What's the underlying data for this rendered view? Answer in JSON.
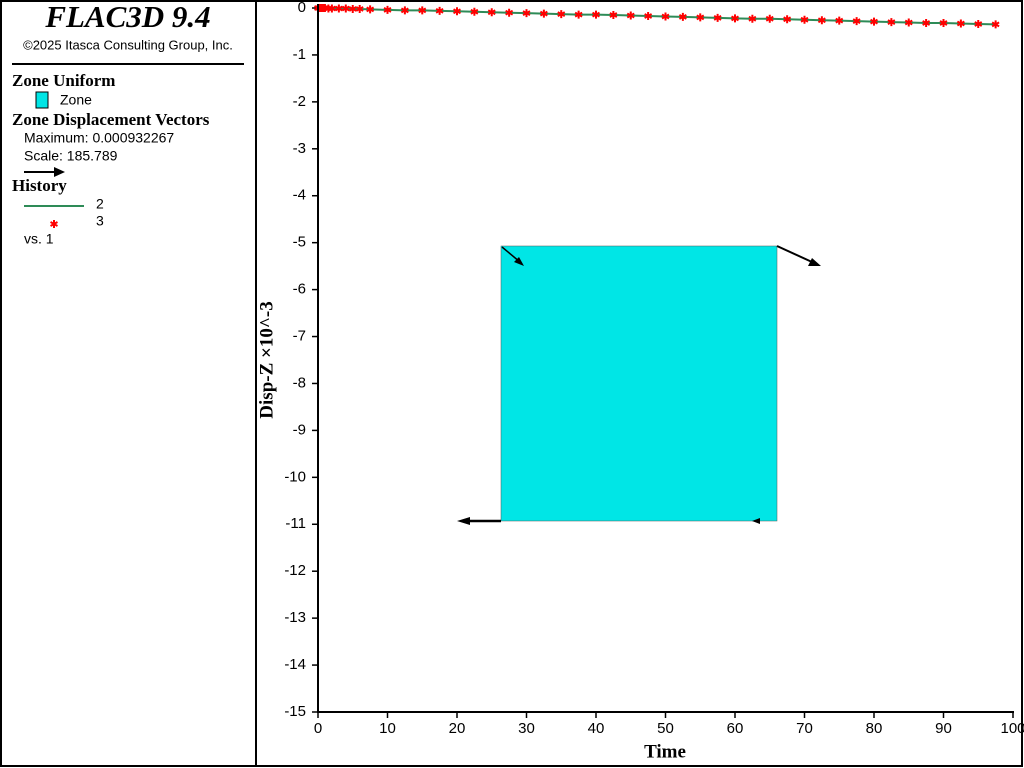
{
  "panel": {
    "title": "FLAC3D 9.4",
    "copyright": "©2025 Itasca Consulting Group, Inc.",
    "zone_heading": "Zone Uniform",
    "zone_item": "Zone",
    "vectors_heading": "Zone Displacement Vectors",
    "vectors_max": "Maximum: 0.000932267",
    "vectors_scale": "Scale: 185.789",
    "history_heading": "History",
    "history_vs": "vs. 1"
  },
  "chart_data": {
    "type": "line",
    "x_label": "Time",
    "y_label": "Disp-Z ×10^-3",
    "x": [
      0,
      0.25,
      0.5,
      0.75,
      1,
      1.5,
      2,
      3,
      4,
      5,
      6,
      7.5,
      10,
      12.5,
      15,
      17.5,
      20,
      22.5,
      25,
      27.5,
      30,
      32.5,
      35,
      37.5,
      40,
      42.5,
      45,
      47.5,
      50,
      52.5,
      55,
      57.5,
      60,
      62.5,
      65,
      67.5,
      70,
      72.5,
      75,
      77.5,
      80,
      82.5,
      85,
      87.5,
      90,
      92.5,
      95,
      97.5
    ],
    "series": [
      {
        "name": "2",
        "color": "#2e8b57",
        "style": "line",
        "values": [
          0,
          0,
          0,
          0,
          0,
          -0.01,
          -0.01,
          -0.01,
          -0.01,
          -0.02,
          -0.02,
          -0.03,
          -0.04,
          -0.05,
          -0.05,
          -0.06,
          -0.07,
          -0.08,
          -0.09,
          -0.1,
          -0.11,
          -0.12,
          -0.13,
          -0.14,
          -0.14,
          -0.15,
          -0.16,
          -0.17,
          -0.18,
          -0.19,
          -0.2,
          -0.21,
          -0.22,
          -0.23,
          -0.23,
          -0.24,
          -0.25,
          -0.26,
          -0.27,
          -0.28,
          -0.29,
          -0.3,
          -0.31,
          -0.32,
          -0.32,
          -0.33,
          -0.34,
          -0.35
        ]
      },
      {
        "name": "3",
        "color": "#ff0000",
        "style": "star",
        "values": [
          0,
          0,
          0,
          0,
          0,
          -0.01,
          -0.01,
          -0.01,
          -0.01,
          -0.02,
          -0.02,
          -0.03,
          -0.04,
          -0.05,
          -0.05,
          -0.06,
          -0.07,
          -0.08,
          -0.09,
          -0.1,
          -0.11,
          -0.12,
          -0.13,
          -0.14,
          -0.14,
          -0.15,
          -0.16,
          -0.17,
          -0.18,
          -0.19,
          -0.2,
          -0.21,
          -0.22,
          -0.23,
          -0.23,
          -0.24,
          -0.25,
          -0.26,
          -0.27,
          -0.28,
          -0.29,
          -0.3,
          -0.31,
          -0.32,
          -0.32,
          -0.33,
          -0.34,
          -0.35
        ]
      }
    ],
    "xlim": [
      0,
      100
    ],
    "xticks": [
      0,
      10,
      20,
      30,
      40,
      50,
      60,
      70,
      80,
      90,
      100
    ],
    "ylim": [
      -15,
      0
    ],
    "yticks": [
      0,
      -1,
      -2,
      -3,
      -4,
      -5,
      -6,
      -7,
      -8,
      -9,
      -10,
      -11,
      -12,
      -13,
      -14,
      -15
    ]
  }
}
